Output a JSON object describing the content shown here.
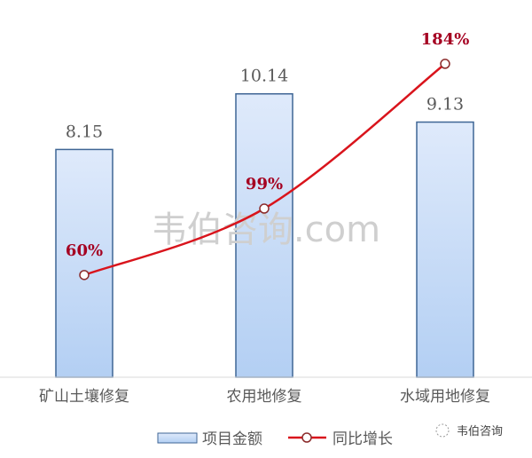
{
  "chart_data": {
    "type": "bar+line",
    "categories": [
      "矿山土壤修复",
      "农用地修复",
      "水域用地修复"
    ],
    "series": [
      {
        "name": "项目金额",
        "type": "bar",
        "axis": "primary",
        "values": [
          8.15,
          10.14,
          9.13
        ],
        "labels": [
          "8.15",
          "10.14",
          "9.13"
        ],
        "color": "#c5dcf7",
        "border": "#3f6695"
      },
      {
        "name": "同比增长",
        "type": "line",
        "axis": "secondary",
        "values": [
          60,
          99,
          184
        ],
        "labels": [
          "60%",
          "99%",
          "184%"
        ],
        "color": "#d9141c"
      }
    ],
    "ylim": [
      0,
      12.8
    ],
    "y2lim": [
      0,
      210
    ],
    "grid": false,
    "legend": "bottom"
  },
  "watermark": "韦伯咨询.com",
  "corner_badge": "韦伯咨询"
}
